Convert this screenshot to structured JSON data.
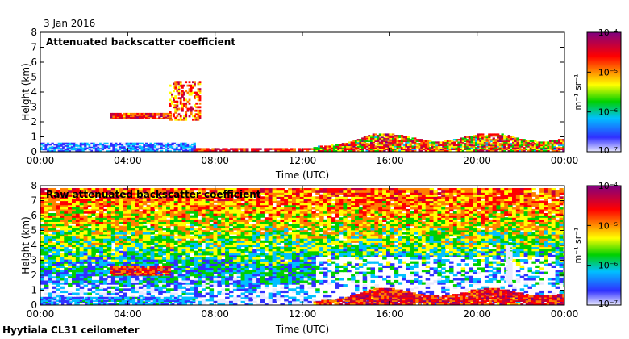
{
  "header": {
    "date": "3 Jan 2016"
  },
  "footer": {
    "site": "Hyytiala CL31 ceilometer"
  },
  "colorbar": {
    "unit_label": "m⁻¹ sr⁻¹",
    "tick_labels": [
      "10⁻⁴",
      "10⁻⁵",
      "10⁻⁶",
      "10⁻⁷"
    ],
    "log_range": [
      -7,
      -4
    ],
    "colors": [
      "#e8e8ff",
      "#3030ff",
      "#00c0ff",
      "#00d000",
      "#ffff00",
      "#ff8000",
      "#ff0000",
      "#c00040",
      "#800080"
    ]
  },
  "chart_data": [
    {
      "type": "heatmap",
      "title": "Attenuated backscatter coefficient",
      "xlabel": "Time (UTC)",
      "ylabel": "Height (km)",
      "xticks": [
        "00:00",
        "04:00",
        "08:00",
        "12:00",
        "16:00",
        "20:00",
        "00:00"
      ],
      "yticks": [
        "0",
        "1",
        "2",
        "3",
        "4",
        "5",
        "6",
        "7",
        "8"
      ],
      "xlim_hours": [
        0,
        24
      ],
      "ylim_km": [
        0,
        8
      ],
      "colorbar_label": "m⁻¹ sr⁻¹",
      "features": [
        {
          "name": "elevated-aerosol-layer",
          "time_hours": [
            3.2,
            5.9
          ],
          "height_km": [
            2.2,
            2.6
          ]
        },
        {
          "name": "mid-level-cloud-patches",
          "time_hours": [
            5.9,
            7.3
          ],
          "height_km": [
            2.1,
            4.7
          ]
        },
        {
          "name": "near-surface-layer",
          "time_hours": [
            0,
            7
          ],
          "height_km": [
            0,
            0.5
          ]
        },
        {
          "name": "boundary-layer",
          "time_hours": [
            12.5,
            24
          ],
          "height_km": [
            0,
            1.3
          ]
        }
      ]
    },
    {
      "type": "heatmap",
      "title": "Raw attenuated backscatter coefficient",
      "xlabel": "Time (UTC)",
      "ylabel": "Height (km)",
      "xticks": [
        "00:00",
        "04:00",
        "08:00",
        "12:00",
        "16:00",
        "20:00",
        "00:00"
      ],
      "yticks": [
        "0",
        "1",
        "2",
        "3",
        "4",
        "5",
        "6",
        "7",
        "8"
      ],
      "xlim_hours": [
        0,
        24
      ],
      "ylim_km": [
        0,
        8
      ],
      "colorbar_label": "m⁻¹ sr⁻¹",
      "features": [
        {
          "name": "noise-background",
          "time_hours": [
            0,
            24
          ],
          "height_km": [
            0,
            7.7
          ]
        },
        {
          "name": "elevated-aerosol-layer",
          "time_hours": [
            3.2,
            5.9
          ],
          "height_km": [
            2.0,
            2.6
          ]
        },
        {
          "name": "boundary-layer",
          "time_hours": [
            12.5,
            24
          ],
          "height_km": [
            0,
            1.3
          ]
        }
      ]
    }
  ]
}
